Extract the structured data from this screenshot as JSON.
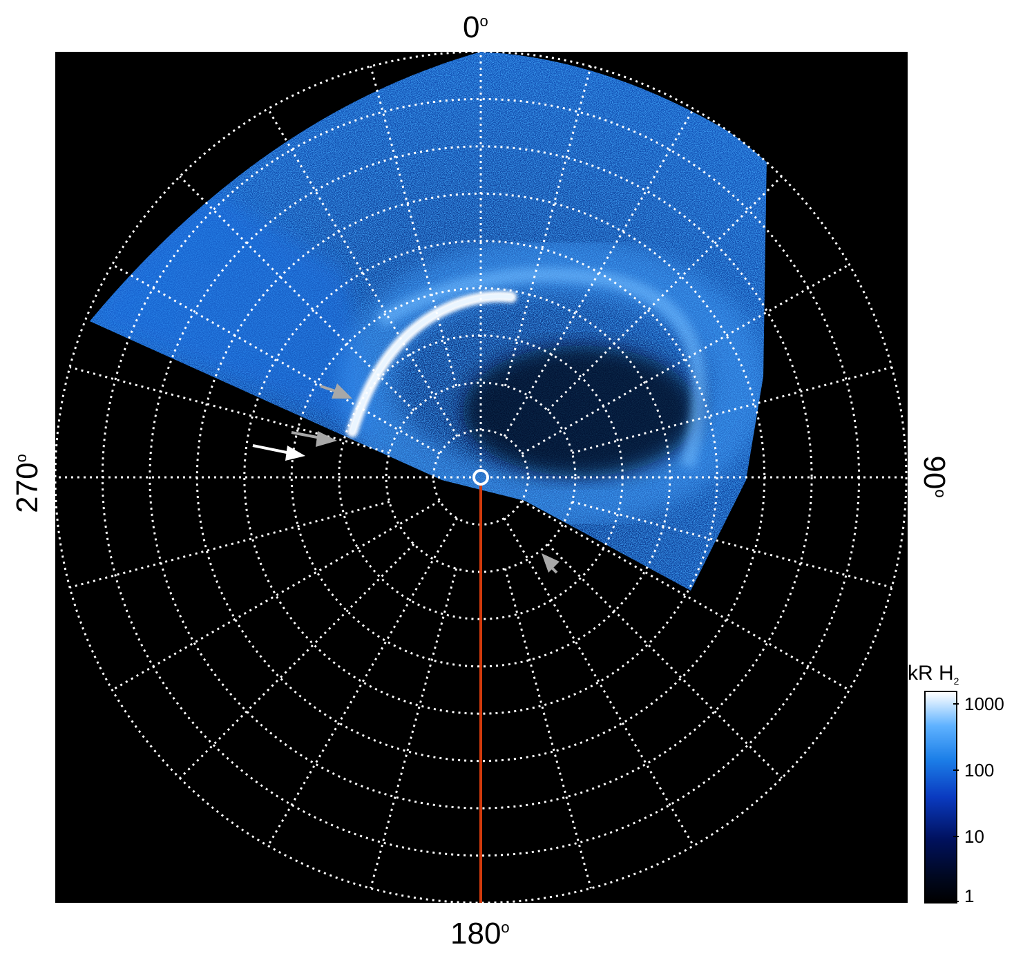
{
  "axis_labels": {
    "top": "0",
    "bottom": "180",
    "left": "270",
    "right": "90",
    "degree_symbol": "o"
  },
  "colorbar": {
    "title_main": "kR H",
    "title_sub": "2",
    "ticks": [
      "1000",
      "100",
      "10",
      "1"
    ],
    "scale": "log"
  },
  "colors": {
    "background": "#000000",
    "grid": "#ffffff",
    "noon_line": "#d23a0c",
    "aurora_main": "#ffffff",
    "emission": "#1c7fe8",
    "arrow_white": "#ffffff",
    "arrow_grey": "#a8a8a8"
  },
  "arrows": [
    {
      "name": "white-arrow",
      "color": "white"
    },
    {
      "name": "grey-arrow-1",
      "color": "grey"
    },
    {
      "name": "grey-arrow-2",
      "color": "grey"
    },
    {
      "name": "grey-arrow-3",
      "color": "grey"
    }
  ]
}
